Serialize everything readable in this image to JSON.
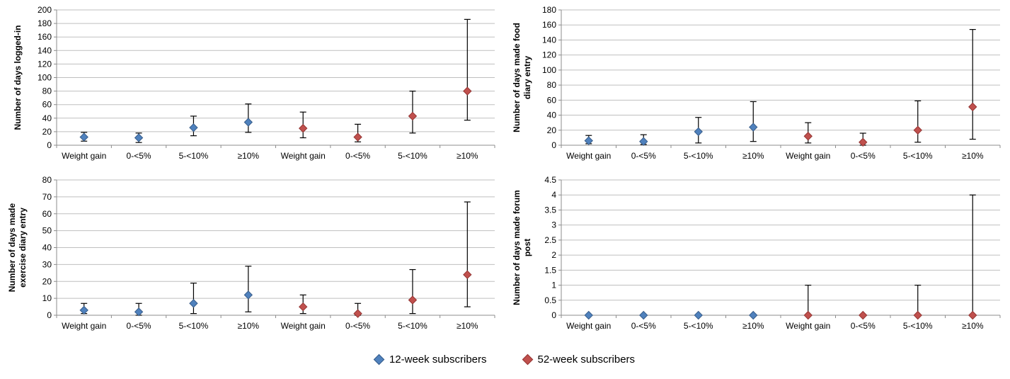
{
  "page": {
    "background": "#FFFFFF"
  },
  "styles": {
    "gridline_color": "#BFBFBF",
    "axis_color": "#8C8C8C",
    "error_bar_color": "#000000",
    "text_color": "#000000"
  },
  "legend": {
    "items": [
      {
        "label": "12-week subscribers",
        "marker": "diamond-icon",
        "color": "#4F81BD",
        "edge_color": "#385D8A"
      },
      {
        "label": "52-week subscribers",
        "marker": "diamond-icon",
        "color": "#C0504D",
        "edge_color": "#943634"
      }
    ]
  },
  "chart_data": [
    {
      "type": "scatter",
      "name": "days-logged-in",
      "title": "",
      "xlabel": "",
      "ylabel": "Number of days logged-in",
      "ylabel_lines": [
        "Number of days logged-in"
      ],
      "ylim": [
        0,
        200
      ],
      "ytick_step": 20,
      "grid": true,
      "categories": [
        "Weight gain",
        "0-<5%",
        "5-<10%",
        "≥10%",
        "Weight gain",
        "0-<5%",
        "5-<10%",
        "≥10%"
      ],
      "series": [
        {
          "name": "12-week subscribers",
          "color": "#4F81BD",
          "edge_color": "#385D8A",
          "y": [
            12,
            11,
            26,
            34,
            null,
            null,
            null,
            null
          ],
          "err_lo": [
            6,
            4,
            14,
            19,
            null,
            null,
            null,
            null
          ],
          "err_hi": [
            19,
            18,
            43,
            61,
            null,
            null,
            null,
            null
          ]
        },
        {
          "name": "52-week subscribers",
          "color": "#C0504D",
          "edge_color": "#943634",
          "y": [
            null,
            null,
            null,
            null,
            25,
            12,
            43,
            80
          ],
          "err_lo": [
            null,
            null,
            null,
            null,
            11,
            5,
            18,
            37
          ],
          "err_hi": [
            null,
            null,
            null,
            null,
            49,
            31,
            80,
            186
          ]
        }
      ]
    },
    {
      "type": "scatter",
      "name": "days-made-food-diary-entry",
      "title": "",
      "xlabel": "",
      "ylabel": "Number of days made food diary entry",
      "ylabel_lines": [
        "Number of days made food",
        "diary entry"
      ],
      "ylim": [
        0,
        180
      ],
      "ytick_step": 20,
      "grid": true,
      "categories": [
        "Weight gain",
        "0-<5%",
        "5-<10%",
        "≥10%",
        "Weight gain",
        "0-<5%",
        "5-<10%",
        "≥10%"
      ],
      "series": [
        {
          "name": "12-week subscribers",
          "color": "#4F81BD",
          "edge_color": "#385D8A",
          "y": [
            6,
            5,
            18,
            24,
            null,
            null,
            null,
            null
          ],
          "err_lo": [
            2,
            1,
            3,
            5,
            null,
            null,
            null,
            null
          ],
          "err_hi": [
            13,
            14,
            37,
            58,
            null,
            null,
            null,
            null
          ]
        },
        {
          "name": "52-week subscribers",
          "color": "#C0504D",
          "edge_color": "#943634",
          "y": [
            null,
            null,
            null,
            null,
            12,
            4,
            20,
            51
          ],
          "err_lo": [
            null,
            null,
            null,
            null,
            3,
            0,
            4,
            8
          ],
          "err_hi": [
            null,
            null,
            null,
            null,
            30,
            16,
            59,
            154
          ]
        }
      ]
    },
    {
      "type": "scatter",
      "name": "days-made-exercise-diary-entry",
      "title": "",
      "xlabel": "",
      "ylabel": "Number of days made exercise diary entry",
      "ylabel_lines": [
        "Number of days made",
        "exercise diary entry"
      ],
      "ylim": [
        0,
        80
      ],
      "ytick_step": 10,
      "grid": true,
      "categories": [
        "Weight gain",
        "0-<5%",
        "5-<10%",
        "≥10%",
        "Weight gain",
        "0-<5%",
        "5-<10%",
        "≥10%"
      ],
      "series": [
        {
          "name": "12-week subscribers",
          "color": "#4F81BD",
          "edge_color": "#385D8A",
          "y": [
            3,
            2,
            7,
            12,
            null,
            null,
            null,
            null
          ],
          "err_lo": [
            1,
            0,
            1,
            2,
            null,
            null,
            null,
            null
          ],
          "err_hi": [
            7,
            7,
            19,
            29,
            null,
            null,
            null,
            null
          ]
        },
        {
          "name": "52-week subscribers",
          "color": "#C0504D",
          "edge_color": "#943634",
          "y": [
            null,
            null,
            null,
            null,
            5,
            1,
            9,
            24
          ],
          "err_lo": [
            null,
            null,
            null,
            null,
            1,
            0,
            1,
            5
          ],
          "err_hi": [
            null,
            null,
            null,
            null,
            12,
            7,
            27,
            67
          ]
        }
      ]
    },
    {
      "type": "scatter",
      "name": "days-made-forum-post",
      "title": "",
      "xlabel": "",
      "ylabel": "Number of days made forum post",
      "ylabel_lines": [
        "Number of days made forum",
        "post"
      ],
      "ylim": [
        0,
        4.5
      ],
      "ytick_step": 0.5,
      "grid": true,
      "categories": [
        "Weight gain",
        "0-<5%",
        "5-<10%",
        "≥10%",
        "Weight gain",
        "0-<5%",
        "5-<10%",
        "≥10%"
      ],
      "series": [
        {
          "name": "12-week subscribers",
          "color": "#4F81BD",
          "edge_color": "#385D8A",
          "y": [
            0,
            0,
            0,
            0,
            null,
            null,
            null,
            null
          ],
          "err_lo": [
            0,
            0,
            0,
            0,
            null,
            null,
            null,
            null
          ],
          "err_hi": [
            0,
            0,
            0,
            0,
            null,
            null,
            null,
            null
          ]
        },
        {
          "name": "52-week subscribers",
          "color": "#C0504D",
          "edge_color": "#943634",
          "y": [
            null,
            null,
            null,
            null,
            0,
            0,
            0,
            0
          ],
          "err_lo": [
            null,
            null,
            null,
            null,
            0,
            0,
            0,
            0
          ],
          "err_hi": [
            null,
            null,
            null,
            null,
            1,
            0,
            1,
            4
          ]
        }
      ]
    }
  ]
}
